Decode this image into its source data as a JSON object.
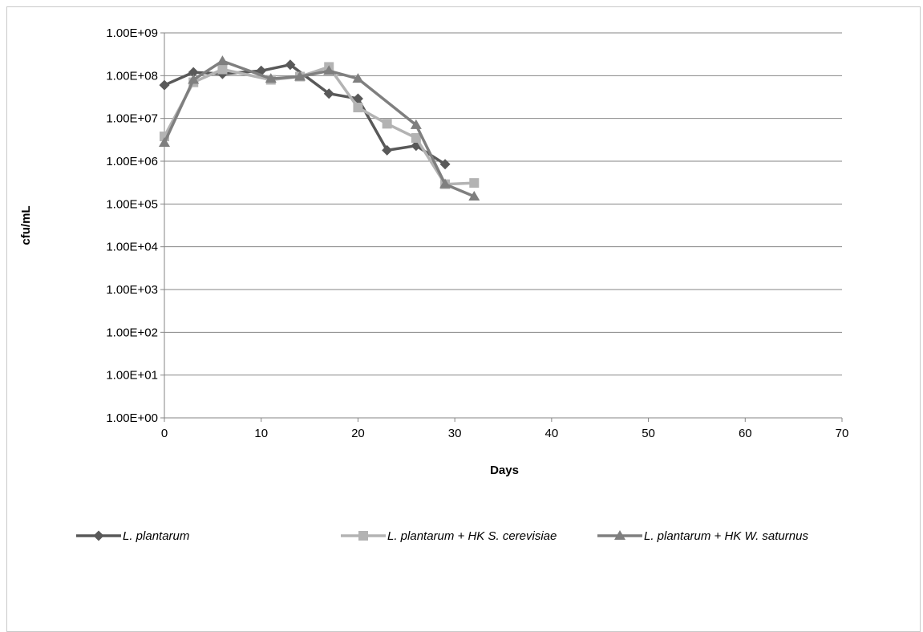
{
  "chart_data": {
    "type": "line",
    "title": "",
    "xlabel": "Days",
    "ylabel": "cfu/mL",
    "xlim": [
      0,
      70
    ],
    "x_ticks": [
      "0",
      "10",
      "20",
      "30",
      "40",
      "50",
      "60",
      "70"
    ],
    "y_scale": "log",
    "ylim": [
      1,
      1000000000
    ],
    "y_ticks": [
      "1.00E+00",
      "1.00E+01",
      "1.00E+02",
      "1.00E+03",
      "1.00E+04",
      "1.00E+05",
      "1.00E+06",
      "1.00E+07",
      "1.00E+08",
      "1.00E+09"
    ],
    "grid": "horizontal major gridlines",
    "legend_position": "bottom",
    "series": [
      {
        "name": "L. plantarum",
        "color": "#595959",
        "marker": "diamond",
        "x": [
          0,
          3,
          6,
          10,
          13,
          17,
          20,
          23,
          26,
          29
        ],
        "y": [
          60000000,
          120000000,
          110000000,
          130000000,
          180000000,
          38000000,
          29000000,
          1800000,
          2300000,
          850000
        ]
      },
      {
        "name": "L. plantarum + HK S. cerevisiae",
        "color": "#b3b3b3",
        "marker": "square",
        "x": [
          0,
          3,
          6,
          11,
          14,
          17,
          20,
          23,
          26,
          29,
          32
        ],
        "y": [
          3800000,
          70000000,
          140000000,
          80000000,
          95000000,
          160000000,
          18000000,
          7500000,
          3500000,
          290000,
          310000
        ]
      },
      {
        "name": "L. plantarum + HK W. saturnus",
        "color": "#7f7f7f",
        "marker": "triangle",
        "x": [
          0,
          3,
          6,
          11,
          14,
          17,
          20,
          26,
          29,
          32
        ],
        "y": [
          2700000,
          80000000,
          220000000,
          85000000,
          95000000,
          130000000,
          85000000,
          7000000,
          290000,
          150000
        ]
      }
    ]
  }
}
